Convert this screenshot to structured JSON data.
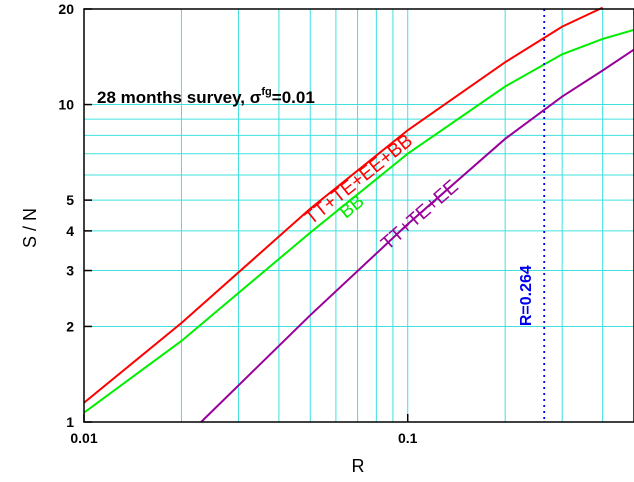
{
  "chart_data": {
    "type": "line",
    "xlabel": "R",
    "ylabel": "S / N",
    "x_scale": "log",
    "y_scale": "log",
    "xlim": [
      0.01,
      0.5
    ],
    "ylim": [
      1,
      20
    ],
    "x_ticks": [
      0.01,
      0.1
    ],
    "x_tick_labels": [
      "0.01",
      "0.1"
    ],
    "y_ticks": [
      1,
      2,
      3,
      4,
      5,
      10,
      20
    ],
    "y_tick_labels": [
      "1",
      "2",
      "3",
      "4",
      "5",
      "10",
      "20"
    ],
    "grid": true,
    "grid_color": "#40e0e0",
    "annotation": {
      "prefix": "28 months survey, ",
      "symbol": "σ",
      "superscript": "fg",
      "suffix": "=0.01"
    },
    "series": [
      {
        "name": "TT+TE+EE+BB",
        "color": "#ff0000",
        "x": [
          0.01,
          0.02,
          0.05,
          0.1,
          0.2,
          0.3,
          0.4
        ],
        "y": [
          1.15,
          2.05,
          4.7,
          8.3,
          13.6,
          17.6,
          20.2
        ]
      },
      {
        "name": "BB",
        "color": "#00ee00",
        "x": [
          0.01,
          0.02,
          0.05,
          0.1,
          0.2,
          0.3,
          0.4,
          0.5
        ],
        "y": [
          1.07,
          1.8,
          3.95,
          7.0,
          11.4,
          14.4,
          16.1,
          17.2
        ]
      },
      {
        "name": "TT+TE+EE",
        "color": "#990099",
        "x": [
          0.023,
          0.05,
          0.1,
          0.2,
          0.3,
          0.4,
          0.5
        ],
        "y": [
          1.0,
          2.17,
          4.2,
          7.8,
          10.6,
          12.8,
          14.9
        ]
      }
    ],
    "markers": [
      {
        "x": 0.264,
        "label": "R=0.264",
        "color": "#0000ee"
      }
    ]
  }
}
